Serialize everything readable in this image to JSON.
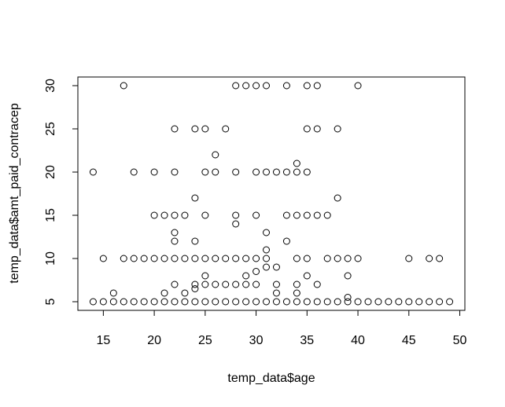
{
  "chart_data": {
    "type": "scatter",
    "title": "",
    "xlabel": "temp_data$age",
    "ylabel": "temp_data$amt_paid_contracep",
    "xlim": [
      12.5,
      50.5
    ],
    "ylim": [
      4.0,
      31.0
    ],
    "xticks": [
      15,
      20,
      25,
      30,
      35,
      40,
      45,
      50
    ],
    "yticks": [
      5,
      10,
      15,
      20,
      25,
      30
    ],
    "grid": false,
    "marker": "open-circle",
    "points": [
      [
        14,
        5
      ],
      [
        15,
        5
      ],
      [
        16,
        5
      ],
      [
        17,
        5
      ],
      [
        18,
        5
      ],
      [
        19,
        5
      ],
      [
        20,
        5
      ],
      [
        21,
        5
      ],
      [
        22,
        5
      ],
      [
        23,
        5
      ],
      [
        24,
        5
      ],
      [
        25,
        5
      ],
      [
        26,
        5
      ],
      [
        27,
        5
      ],
      [
        28,
        5
      ],
      [
        29,
        5
      ],
      [
        30,
        5
      ],
      [
        31,
        5
      ],
      [
        32,
        5
      ],
      [
        33,
        5
      ],
      [
        34,
        5
      ],
      [
        35,
        5
      ],
      [
        36,
        5
      ],
      [
        37,
        5
      ],
      [
        38,
        5
      ],
      [
        39,
        5
      ],
      [
        40,
        5
      ],
      [
        41,
        5
      ],
      [
        42,
        5
      ],
      [
        43,
        5
      ],
      [
        44,
        5
      ],
      [
        45,
        5
      ],
      [
        46,
        5
      ],
      [
        47,
        5
      ],
      [
        48,
        5
      ],
      [
        49,
        5
      ],
      [
        16,
        6
      ],
      [
        21,
        6
      ],
      [
        23,
        6
      ],
      [
        32,
        6
      ],
      [
        34,
        6
      ],
      [
        39,
        5.5
      ],
      [
        22,
        7
      ],
      [
        24,
        7
      ],
      [
        24,
        6.5
      ],
      [
        25,
        7
      ],
      [
        26,
        7
      ],
      [
        27,
        7
      ],
      [
        28,
        7
      ],
      [
        29,
        7
      ],
      [
        30,
        7
      ],
      [
        32,
        7
      ],
      [
        34,
        7
      ],
      [
        36,
        7
      ],
      [
        25,
        8
      ],
      [
        29,
        8
      ],
      [
        30,
        8.5
      ],
      [
        35,
        8
      ],
      [
        39,
        8
      ],
      [
        31,
        9
      ],
      [
        32,
        9
      ],
      [
        15,
        10
      ],
      [
        17,
        10
      ],
      [
        18,
        10
      ],
      [
        19,
        10
      ],
      [
        20,
        10
      ],
      [
        21,
        10
      ],
      [
        22,
        10
      ],
      [
        23,
        10
      ],
      [
        24,
        10
      ],
      [
        25,
        10
      ],
      [
        26,
        10
      ],
      [
        27,
        10
      ],
      [
        28,
        10
      ],
      [
        29,
        10
      ],
      [
        30,
        10
      ],
      [
        31,
        10
      ],
      [
        34,
        10
      ],
      [
        35,
        10
      ],
      [
        37,
        10
      ],
      [
        38,
        10
      ],
      [
        39,
        10
      ],
      [
        40,
        10
      ],
      [
        45,
        10
      ],
      [
        47,
        10
      ],
      [
        48,
        10
      ],
      [
        31,
        11
      ],
      [
        22,
        12
      ],
      [
        24,
        12
      ],
      [
        33,
        12
      ],
      [
        22,
        13
      ],
      [
        31,
        13
      ],
      [
        28,
        14
      ],
      [
        20,
        15
      ],
      [
        21,
        15
      ],
      [
        22,
        15
      ],
      [
        23,
        15
      ],
      [
        25,
        15
      ],
      [
        28,
        15
      ],
      [
        30,
        15
      ],
      [
        33,
        15
      ],
      [
        34,
        15
      ],
      [
        35,
        15
      ],
      [
        36,
        15
      ],
      [
        37,
        15
      ],
      [
        24,
        17
      ],
      [
        38,
        17
      ],
      [
        14,
        20
      ],
      [
        18,
        20
      ],
      [
        20,
        20
      ],
      [
        22,
        20
      ],
      [
        25,
        20
      ],
      [
        26,
        20
      ],
      [
        28,
        20
      ],
      [
        30,
        20
      ],
      [
        31,
        20
      ],
      [
        32,
        20
      ],
      [
        33,
        20
      ],
      [
        34,
        20
      ],
      [
        35,
        20
      ],
      [
        34,
        21
      ],
      [
        26,
        22
      ],
      [
        22,
        25
      ],
      [
        24,
        25
      ],
      [
        25,
        25
      ],
      [
        27,
        25
      ],
      [
        35,
        25
      ],
      [
        36,
        25
      ],
      [
        38,
        25
      ],
      [
        17,
        30
      ],
      [
        28,
        30
      ],
      [
        29,
        30
      ],
      [
        30,
        30
      ],
      [
        31,
        30
      ],
      [
        33,
        30
      ],
      [
        35,
        30
      ],
      [
        36,
        30
      ],
      [
        40,
        30
      ]
    ]
  }
}
